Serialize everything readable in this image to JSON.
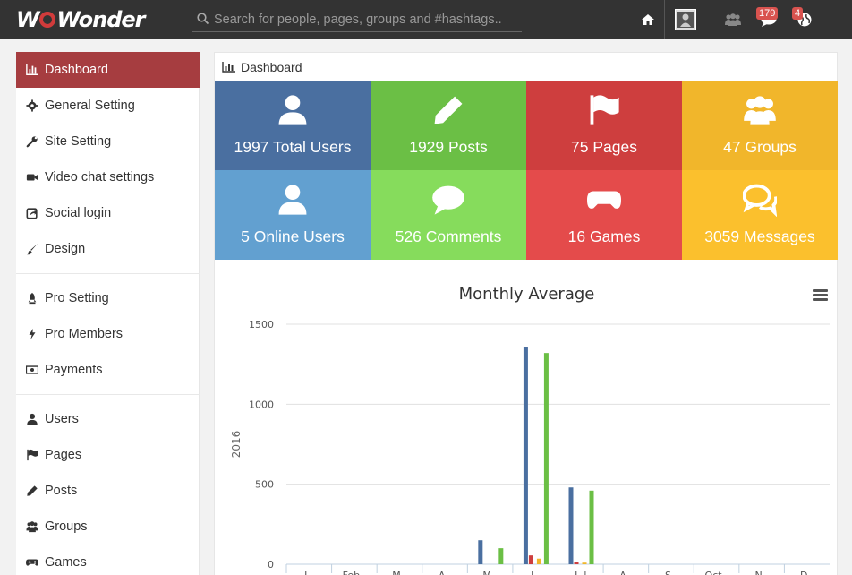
{
  "app": {
    "brand": "WoWonder"
  },
  "search": {
    "placeholder": "Search for people, pages, groups and #hashtags.."
  },
  "header": {
    "messages_badge": "179",
    "notifications_badge": "4"
  },
  "sidebar": {
    "groups": [
      [
        {
          "label": "Dashboard",
          "icon": "bar-chart-icon",
          "active": true
        },
        {
          "label": "General Setting",
          "icon": "gear-icon"
        },
        {
          "label": "Site Setting",
          "icon": "wrench-icon"
        },
        {
          "label": "Video chat settings",
          "icon": "video-camera-icon"
        },
        {
          "label": "Social login",
          "icon": "share-square-icon"
        },
        {
          "label": "Design",
          "icon": "paint-brush-icon"
        }
      ],
      [
        {
          "label": "Pro Setting",
          "icon": "rocket-icon"
        },
        {
          "label": "Pro Members",
          "icon": "bolt-icon"
        },
        {
          "label": "Payments",
          "icon": "money-icon"
        }
      ],
      [
        {
          "label": "Users",
          "icon": "user-icon"
        },
        {
          "label": "Pages",
          "icon": "flag-icon"
        },
        {
          "label": "Posts",
          "icon": "pencil-icon"
        },
        {
          "label": "Groups",
          "icon": "users-icon"
        },
        {
          "label": "Games",
          "icon": "gamepad-icon"
        }
      ]
    ]
  },
  "breadcrumb": {
    "label": "Dashboard"
  },
  "stats": [
    {
      "label": "1997 Total Users",
      "icon": "user-icon",
      "color": "#4a6fa0"
    },
    {
      "label": "1929 Posts",
      "icon": "pencil-icon",
      "color": "#6bbf45"
    },
    {
      "label": "75 Pages",
      "icon": "flag-icon",
      "color": "#ce3e3e"
    },
    {
      "label": "47 Groups",
      "icon": "users-icon",
      "color": "#f1b62b"
    },
    {
      "label": "5 Online Users",
      "icon": "user-icon",
      "color": "#62a0d0"
    },
    {
      "label": "526 Comments",
      "icon": "comment-icon",
      "color": "#86dc5c"
    },
    {
      "label": "16 Games",
      "icon": "gamepad-icon",
      "color": "#e44b4b"
    },
    {
      "label": "3059 Messages",
      "icon": "comments-icon",
      "color": "#fbc02d"
    }
  ],
  "chart_data": {
    "type": "bar",
    "title": "Monthly Average",
    "ylabel": "2016",
    "ylim": [
      0,
      1500
    ],
    "yticks": [
      0,
      500,
      1000,
      1500
    ],
    "categories": [
      "Jan",
      "Feb",
      "Mar",
      "Apr",
      "May",
      "Jun",
      "Jul",
      "Aug",
      "Sep",
      "Oct",
      "Nov",
      "Dec"
    ],
    "category_labels": [
      "J..",
      "Feb..",
      "M..",
      "A..",
      "M..",
      "J..",
      "J..l",
      "A..",
      "S..",
      "Oct..",
      "N..",
      "D.."
    ],
    "series": [
      {
        "color": "#4a6fa0",
        "values": [
          0,
          0,
          0,
          0,
          150,
          1360,
          480,
          0,
          0,
          0,
          0,
          0
        ]
      },
      {
        "color": "#ce3e3e",
        "values": [
          0,
          0,
          0,
          0,
          0,
          55,
          15,
          0,
          0,
          0,
          0,
          0
        ]
      },
      {
        "color": "#f1b62b",
        "values": [
          0,
          0,
          0,
          0,
          0,
          35,
          10,
          0,
          0,
          0,
          0,
          0
        ]
      },
      {
        "color": "#6bbf45",
        "values": [
          0,
          0,
          0,
          0,
          100,
          1320,
          460,
          0,
          0,
          0,
          0,
          0
        ]
      }
    ]
  }
}
